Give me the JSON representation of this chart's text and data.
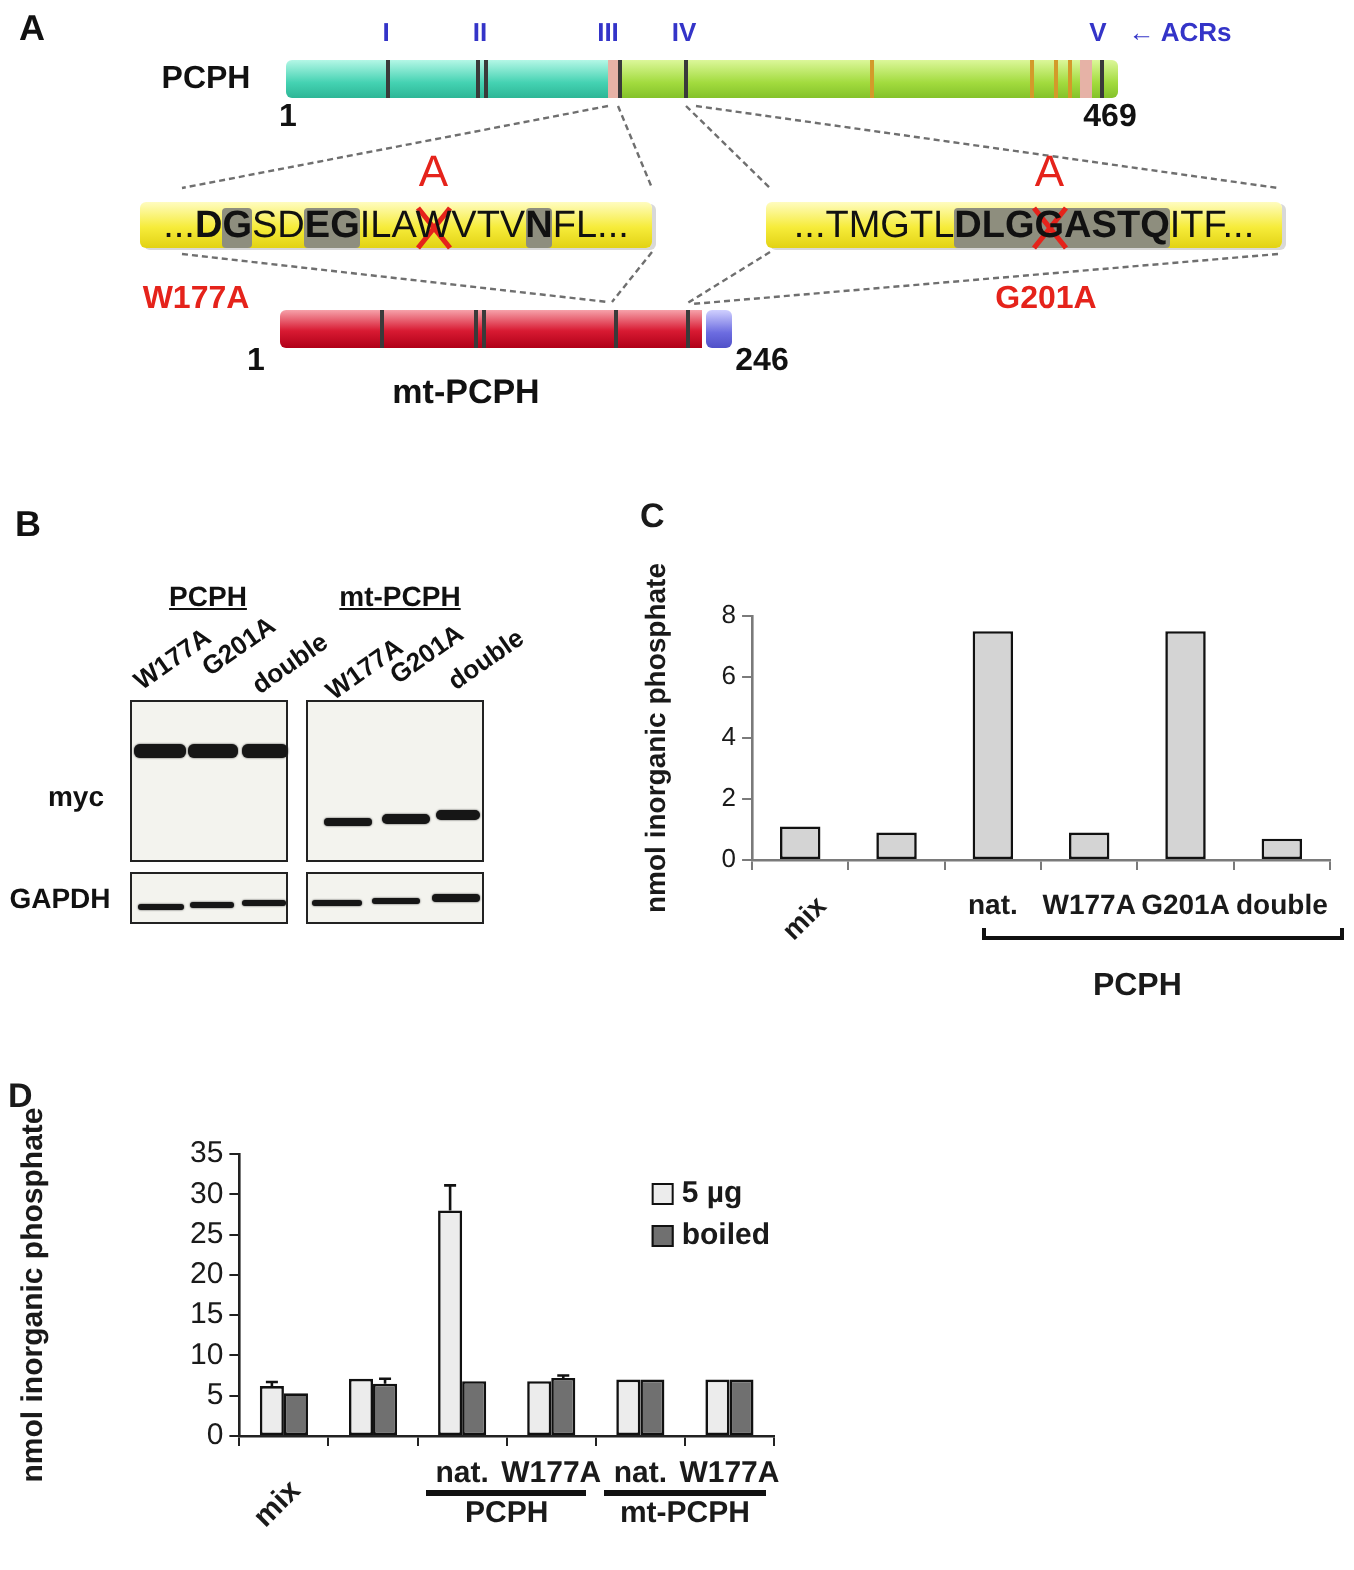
{
  "chart_data": [
    {
      "type": "other",
      "title": "A",
      "annotations": [
        "PCPH",
        "I",
        "II",
        "III",
        "IV",
        "V",
        "← ACRs",
        "1",
        "469",
        "...DGSDEGILAWVTVNFL...",
        "A",
        "...TMGTLDLGGASTQITF...",
        "A",
        "W177A",
        "G201A",
        "1",
        "mt-PCPH",
        "246"
      ]
    },
    {
      "type": "other",
      "title": "B",
      "annotations": [
        "PCPH",
        "mt-PCPH",
        "W177A",
        "G201A",
        "double",
        "W177A",
        "G201A",
        "double",
        "myc",
        "GAPDH"
      ]
    },
    {
      "type": "bar",
      "title": "C",
      "ylabel": "nmol inorganic phosphate",
      "categories": [
        "mix",
        null,
        "nat.",
        "W177A",
        "G201A",
        "double"
      ],
      "values": [
        1.1,
        0.9,
        7.5,
        0.9,
        7.5,
        0.7
      ],
      "color": "#d4d4d4",
      "ylim": [
        0,
        8
      ],
      "yticks": [
        0,
        2,
        4,
        6,
        8
      ],
      "annotations": [
        "PCPH"
      ]
    },
    {
      "type": "bar",
      "title": "D",
      "ylabel": "nmol inorganic phosphate",
      "categories": [
        "mix",
        null,
        "nat.",
        "W177A",
        "nat.",
        "W177A"
      ],
      "series": [
        {
          "name": "5 µg",
          "color": "#ececec",
          "values": [
            6.2,
            7.1,
            28,
            6.8,
            7.0,
            7.0
          ],
          "errors": [
            [
              6.2,
              6.7
            ],
            null,
            [
              28,
              31.1
            ],
            null,
            null,
            null
          ]
        },
        {
          "name": "boiled",
          "color": "#707070",
          "values": [
            5.3,
            6.5,
            6.8,
            7.2,
            7.0,
            7.0
          ],
          "errors": [
            null,
            [
              6.5,
              7.1
            ],
            null,
            [
              7.2,
              7.5
            ],
            null,
            null
          ]
        }
      ],
      "ylim": [
        0,
        35
      ],
      "yticks": [
        0,
        5,
        10,
        15,
        20,
        25,
        30,
        35
      ],
      "legend": "top right",
      "annotations": [
        "PCPH",
        "mt-PCPH"
      ]
    }
  ]
}
